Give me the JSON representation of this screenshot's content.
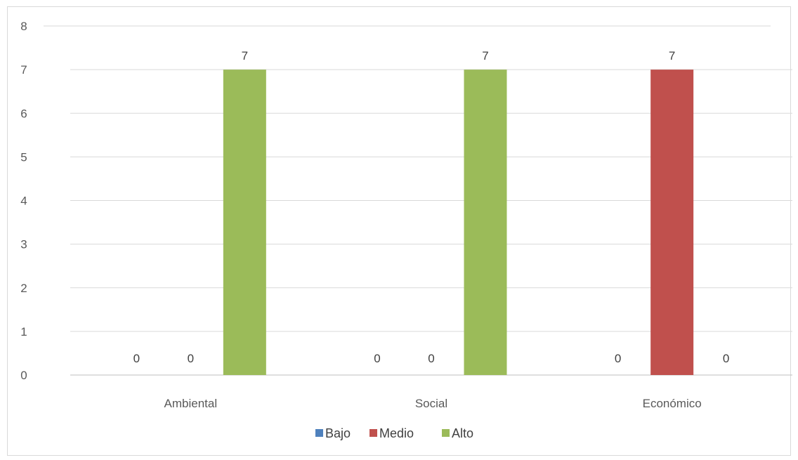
{
  "chart_data": {
    "type": "bar",
    "categories": [
      "Ambiental",
      "Social",
      "Económico"
    ],
    "series": [
      {
        "name": "Bajo",
        "color": "#4f81bd",
        "values": [
          0,
          0,
          0
        ]
      },
      {
        "name": "Medio",
        "color": "#c0504d",
        "values": [
          0,
          0,
          7
        ]
      },
      {
        "name": "Alto",
        "color": "#9bbb59",
        "values": [
          7,
          7,
          0
        ]
      }
    ],
    "ylim": [
      0,
      8
    ],
    "yticks": [
      "0",
      "1",
      "2",
      "3",
      "4",
      "5",
      "6",
      "7",
      "8"
    ],
    "grid": true,
    "data_labels": true,
    "legend_position": "bottom",
    "title": "",
    "xlabel": "",
    "ylabel": ""
  }
}
